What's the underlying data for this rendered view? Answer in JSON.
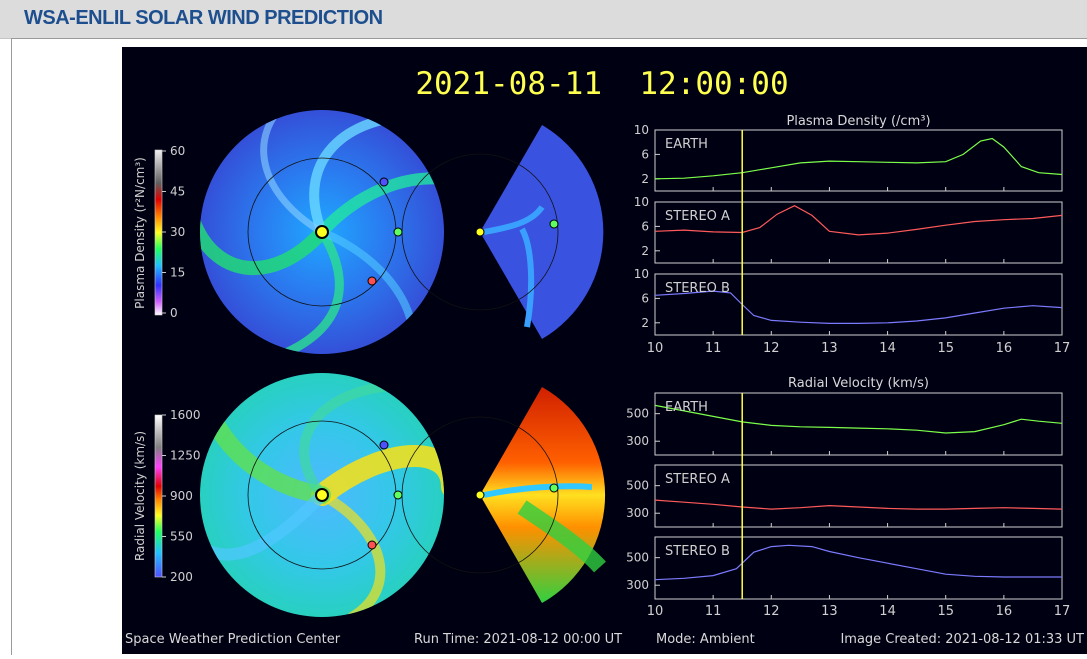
{
  "page": {
    "title": "WSA-ENLIL SOLAR WIND PREDICTION"
  },
  "plot": {
    "timestamp": "2021-08-11  12:00:00",
    "footer": {
      "center": "Space Weather Prediction Center",
      "run_time": "Run Time: 2021-08-12 00:00 UT",
      "mode": "Mode: Ambient",
      "created": "Image Created: 2021-08-12 01:33 UT"
    },
    "density_colorbar": {
      "label": "Plasma Density (r²N/cm³)",
      "ticks": [
        "60",
        "45",
        "30",
        "15",
        "0"
      ]
    },
    "velocity_colorbar": {
      "label": "Radial Velocity (km/s)",
      "ticks": [
        "1600",
        "1250",
        "900",
        "550",
        "200"
      ]
    }
  },
  "chart_data": [
    {
      "type": "line",
      "title": "Plasma Density (/cm³)",
      "x_ticks": [
        "10",
        "11",
        "12",
        "13",
        "14",
        "15",
        "16",
        "17"
      ],
      "xlim": [
        10,
        17
      ],
      "current_time": 11.5,
      "ylim": [
        0,
        10
      ],
      "y_ticks": [
        "10",
        "6",
        "2"
      ],
      "panels": [
        {
          "name": "EARTH",
          "color": "#7cff4a",
          "x": [
            10,
            10.5,
            11,
            11.5,
            12,
            12.5,
            13,
            13.5,
            14,
            14.5,
            15,
            15.3,
            15.6,
            15.8,
            16.0,
            16.3,
            16.6,
            17
          ],
          "y": [
            2.0,
            2.1,
            2.5,
            3.0,
            3.8,
            4.6,
            4.9,
            4.8,
            4.7,
            4.6,
            4.8,
            6.0,
            8.2,
            8.6,
            7.2,
            4.0,
            3.0,
            2.7
          ]
        },
        {
          "name": "STEREO A",
          "color": "#ff5a5a",
          "x": [
            10,
            10.5,
            11,
            11.5,
            11.8,
            12.1,
            12.4,
            12.7,
            13,
            13.5,
            14,
            14.5,
            15,
            15.5,
            16,
            16.5,
            17
          ],
          "y": [
            5.2,
            5.4,
            5.1,
            5.0,
            5.8,
            8.0,
            9.4,
            7.8,
            5.2,
            4.6,
            4.9,
            5.5,
            6.2,
            6.8,
            7.1,
            7.3,
            7.8
          ]
        },
        {
          "name": "STEREO B",
          "color": "#7b7bff",
          "x": [
            10,
            10.5,
            11,
            11.3,
            11.5,
            11.7,
            12,
            12.5,
            13,
            13.5,
            14,
            14.5,
            15,
            15.5,
            16,
            16.5,
            17
          ],
          "y": [
            6.5,
            6.8,
            7.2,
            6.9,
            5.0,
            3.2,
            2.4,
            2.1,
            1.9,
            1.9,
            2.0,
            2.3,
            2.8,
            3.6,
            4.4,
            4.8,
            4.5
          ]
        }
      ]
    },
    {
      "type": "line",
      "title": "Radial Velocity (km/s)",
      "x_ticks": [
        "10",
        "11",
        "12",
        "13",
        "14",
        "15",
        "16",
        "17"
      ],
      "xlim": [
        10,
        17
      ],
      "current_time": 11.5,
      "ylim": [
        200,
        650
      ],
      "y_ticks": [
        "500",
        "300"
      ],
      "panels": [
        {
          "name": "EARTH",
          "color": "#7cff4a",
          "x": [
            10,
            10.5,
            11,
            11.5,
            12,
            12.5,
            13,
            13.5,
            14,
            14.5,
            15,
            15.5,
            16,
            16.3,
            16.6,
            17
          ],
          "y": [
            560,
            520,
            480,
            440,
            415,
            405,
            400,
            395,
            390,
            380,
            360,
            370,
            420,
            460,
            445,
            430
          ]
        },
        {
          "name": "STEREO A",
          "color": "#ff5a5a",
          "x": [
            10,
            10.5,
            11,
            11.5,
            12,
            12.5,
            13,
            13.5,
            14,
            14.5,
            15,
            15.5,
            16,
            16.5,
            17
          ],
          "y": [
            395,
            380,
            365,
            345,
            330,
            340,
            355,
            345,
            335,
            330,
            330,
            335,
            340,
            335,
            330
          ]
        },
        {
          "name": "STEREO B",
          "color": "#7b7bff",
          "x": [
            10,
            10.5,
            11,
            11.4,
            11.7,
            12,
            12.3,
            12.7,
            13,
            13.5,
            14,
            14.5,
            15,
            15.5,
            16,
            16.5,
            17
          ],
          "y": [
            340,
            350,
            370,
            420,
            540,
            580,
            590,
            580,
            545,
            500,
            460,
            420,
            380,
            365,
            360,
            360,
            360
          ]
        }
      ]
    }
  ]
}
